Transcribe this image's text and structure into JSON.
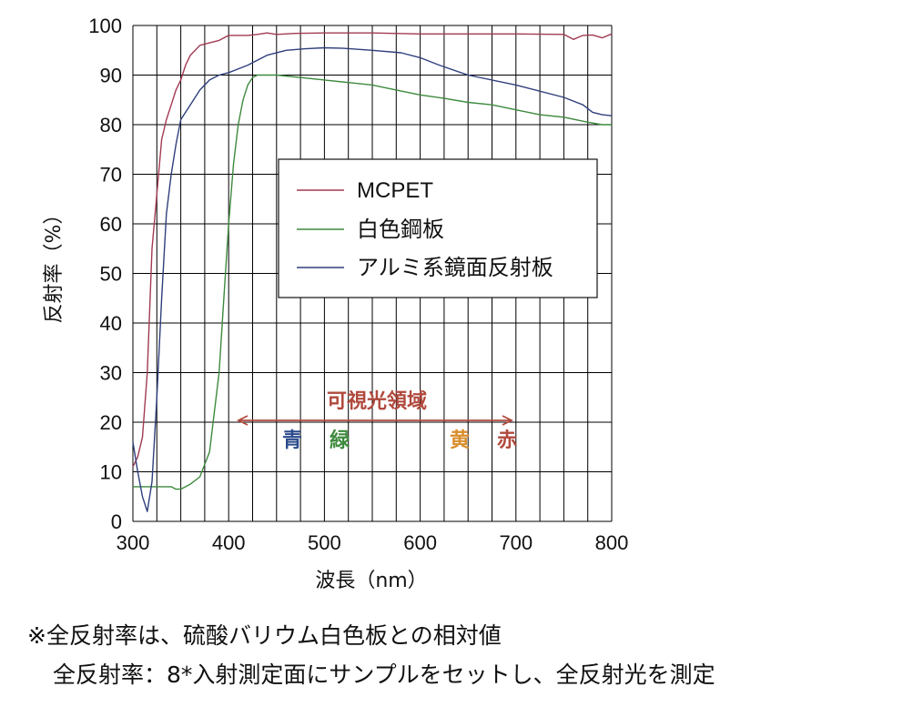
{
  "chart_data": {
    "type": "line",
    "xlabel": "波長（nm）",
    "ylabel": "反射率（%）",
    "xlim": [
      300,
      800
    ],
    "ylim": [
      0,
      100
    ],
    "x_ticks": [
      300,
      400,
      500,
      600,
      700,
      800
    ],
    "y_ticks": [
      0,
      10,
      20,
      30,
      40,
      50,
      60,
      70,
      80,
      90,
      100
    ],
    "x_grid_step": 25,
    "y_grid_step": 10,
    "grid": true,
    "legend_position": "center-right",
    "series": [
      {
        "name": "MCPET",
        "color": "#a23a52",
        "x": [
          300,
          305,
          310,
          315,
          320,
          325,
          330,
          335,
          340,
          345,
          350,
          355,
          360,
          365,
          370,
          380,
          390,
          400,
          410,
          420,
          430,
          440,
          450,
          470,
          500,
          550,
          600,
          650,
          700,
          750,
          760,
          770,
          780,
          790,
          800
        ],
        "y": [
          11,
          13,
          17,
          30,
          55,
          66,
          77,
          81,
          84,
          87,
          89,
          92,
          94,
          95,
          96,
          96.5,
          97,
          98,
          98,
          98,
          98.2,
          98.5,
          98.2,
          98.4,
          98.5,
          98.5,
          98.3,
          98.3,
          98.3,
          98.2,
          97.2,
          98,
          98.1,
          97.5,
          98.3
        ]
      },
      {
        "name": "白色鋼板",
        "color": "#3d8a3d",
        "x": [
          300,
          310,
          320,
          330,
          340,
          345,
          350,
          360,
          370,
          380,
          390,
          395,
          400,
          405,
          410,
          415,
          420,
          425,
          430,
          440,
          450,
          475,
          500,
          525,
          550,
          575,
          600,
          625,
          650,
          675,
          700,
          725,
          750,
          775,
          790,
          800
        ],
        "y": [
          7,
          7,
          7,
          7,
          7,
          6.5,
          6.5,
          7.5,
          9,
          14,
          30,
          45,
          60,
          72,
          80,
          85,
          88,
          89.5,
          90,
          90,
          90,
          89.5,
          89,
          88.5,
          88,
          87,
          86,
          85.3,
          84.5,
          84,
          83,
          82,
          81.5,
          80.5,
          80,
          80
        ]
      },
      {
        "name": "アルミ系鏡面反射板",
        "color": "#2f3f7c",
        "x": [
          300,
          305,
          310,
          315,
          320,
          325,
          330,
          335,
          340,
          345,
          350,
          360,
          370,
          380,
          390,
          400,
          420,
          440,
          460,
          480,
          500,
          520,
          550,
          580,
          600,
          620,
          650,
          700,
          750,
          770,
          780,
          790,
          800
        ],
        "y": [
          16,
          10,
          5,
          2,
          8,
          25,
          45,
          62,
          70,
          76,
          81,
          84,
          87,
          89,
          90,
          90.5,
          92,
          94,
          95,
          95.3,
          95.5,
          95.4,
          95,
          94.5,
          93.5,
          92,
          90,
          88,
          85.5,
          84,
          82.5,
          82,
          81.8
        ]
      }
    ],
    "annotations": {
      "region": "可視光領域",
      "blue": "青",
      "green": "緑",
      "yellow": "黄",
      "red": "赤",
      "region_range": [
        415,
        700
      ]
    }
  },
  "colors": {
    "region_text": "#b0493d",
    "blue_text": "#2c4b8c",
    "green_text": "#3d8a3d",
    "yellow_text": "#d98e2c",
    "red_text": "#b0493d",
    "grid": "#000000"
  },
  "notes": {
    "line1": "※全反射率は、硫酸バリウム白色板との相対値",
    "line2": "全反射率：8*入射測定面にサンプルをセットし、全反射光を測定"
  }
}
